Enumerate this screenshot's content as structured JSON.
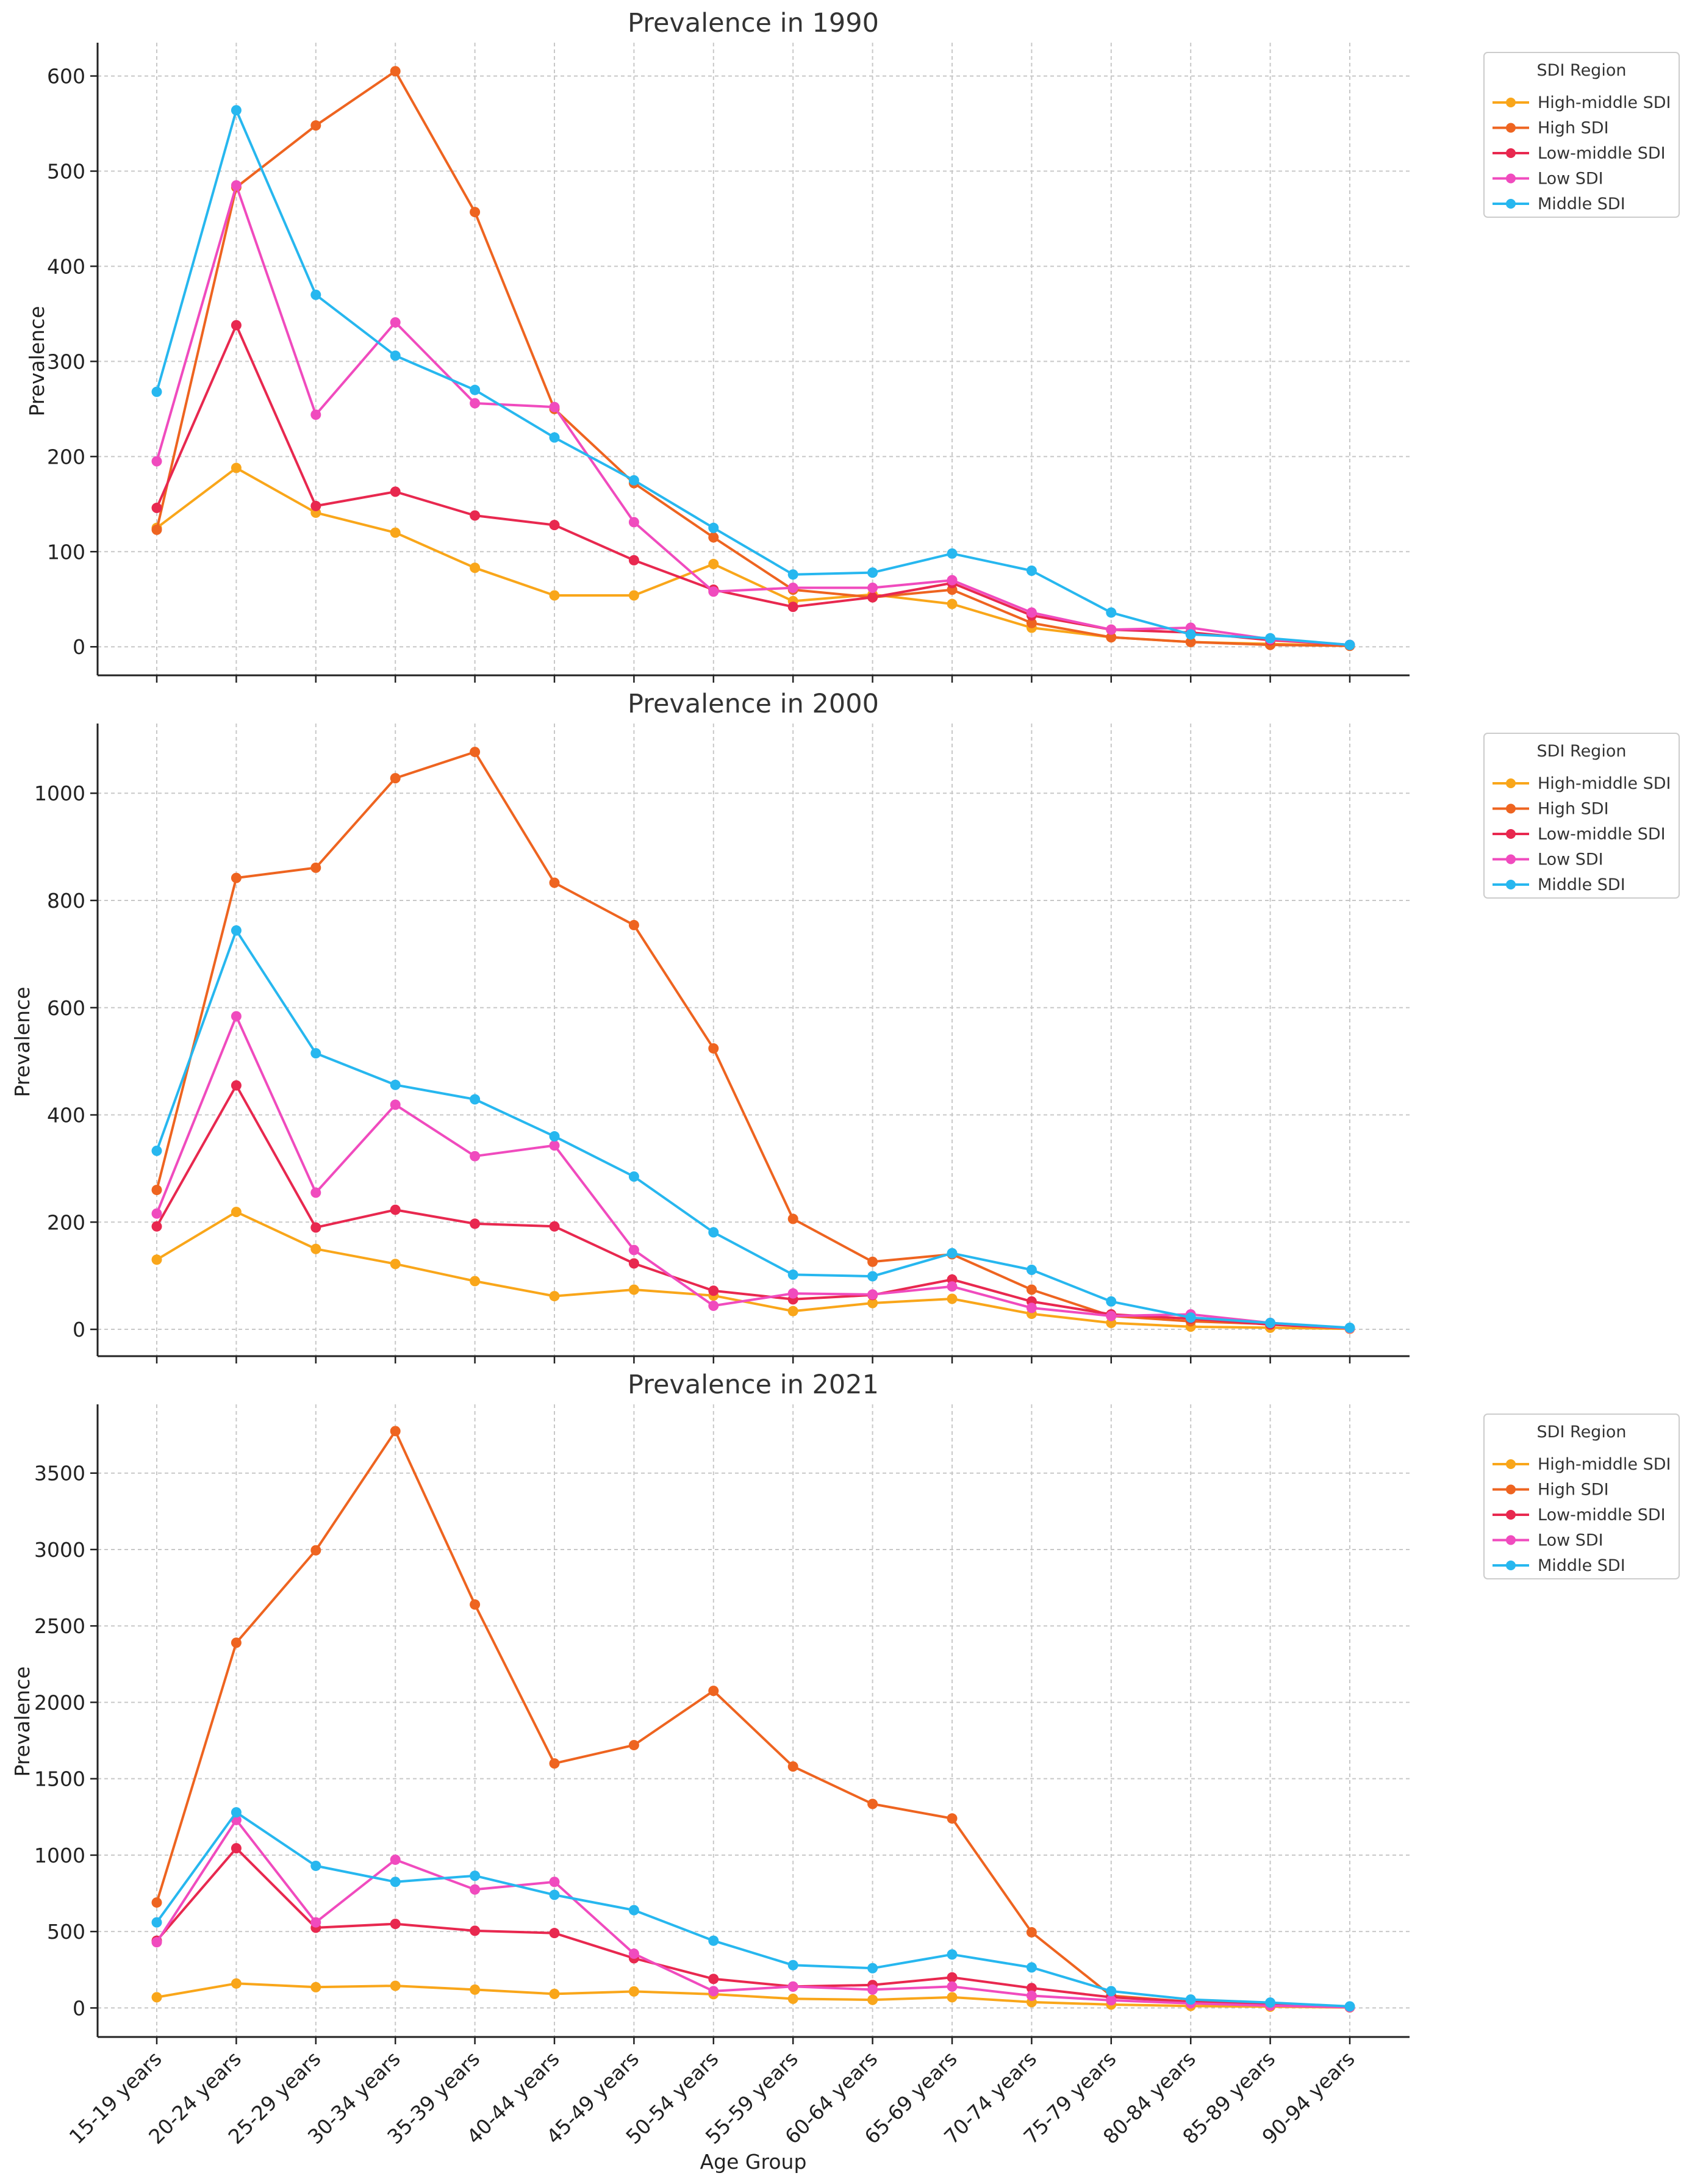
{
  "figure": {
    "xlabel": "Age Group",
    "ylabel": "Prevalence"
  },
  "legend_title": "SDI Region",
  "series_meta": [
    {
      "name": "High-middle SDI",
      "color": "#F9A61A"
    },
    {
      "name": "High SDI",
      "color": "#EE6420"
    },
    {
      "name": "Low-middle SDI",
      "color": "#E8284F"
    },
    {
      "name": "Low SDI",
      "color": "#F04BBE"
    },
    {
      "name": "Middle SDI",
      "color": "#27B7EF"
    }
  ],
  "chart_data": [
    {
      "type": "line",
      "title": "Prevalence in 1990",
      "xlabel": "",
      "ylabel": "Prevalence",
      "ylim": [
        -30,
        635
      ],
      "yticks": [
        0,
        100,
        200,
        300,
        400,
        500,
        600
      ],
      "grid": true,
      "legend": "top-right outside",
      "categories": [
        "15-19 years",
        "20-24 years",
        "25-29 years",
        "30-34 years",
        "35-39 years",
        "40-44 years",
        "45-49 years",
        "50-54 years",
        "55-59 years",
        "60-64 years",
        "65-69 years",
        "70-74 years",
        "75-79 years",
        "80-84 years",
        "85-89 years",
        "90-94 years"
      ],
      "series": [
        {
          "name": "High-middle SDI",
          "values": [
            125,
            188,
            141,
            120,
            83,
            54,
            54,
            87,
            48,
            55,
            45,
            20,
            10,
            5,
            3,
            1
          ]
        },
        {
          "name": "High SDI",
          "values": [
            123,
            483,
            548,
            605,
            457,
            250,
            172,
            115,
            60,
            52,
            60,
            25,
            10,
            5,
            2,
            1
          ]
        },
        {
          "name": "Low-middle SDI",
          "values": [
            146,
            338,
            148,
            163,
            138,
            128,
            91,
            60,
            42,
            52,
            67,
            33,
            18,
            15,
            7,
            2
          ]
        },
        {
          "name": "Low SDI",
          "values": [
            195,
            485,
            244,
            341,
            256,
            252,
            131,
            58,
            62,
            62,
            70,
            36,
            18,
            20,
            8,
            2
          ]
        },
        {
          "name": "Middle SDI",
          "values": [
            268,
            564,
            370,
            306,
            270,
            220,
            175,
            125,
            76,
            78,
            98,
            80,
            36,
            13,
            9,
            2
          ]
        }
      ]
    },
    {
      "type": "line",
      "title": "Prevalence in 2000",
      "xlabel": "",
      "ylabel": "Prevalence",
      "ylim": [
        -50,
        1130
      ],
      "yticks": [
        0,
        200,
        400,
        600,
        800,
        1000
      ],
      "grid": true,
      "legend": "top-right outside",
      "categories": [
        "15-19 years",
        "20-24 years",
        "25-29 years",
        "30-34 years",
        "35-39 years",
        "40-44 years",
        "45-49 years",
        "50-54 years",
        "55-59 years",
        "60-64 years",
        "65-69 years",
        "70-74 years",
        "75-79 years",
        "80-84 years",
        "85-89 years",
        "90-94 years"
      ],
      "series": [
        {
          "name": "High-middle SDI",
          "values": [
            130,
            219,
            150,
            122,
            90,
            62,
            74,
            63,
            34,
            49,
            57,
            29,
            12,
            5,
            3,
            1
          ]
        },
        {
          "name": "High SDI",
          "values": [
            260,
            842,
            861,
            1028,
            1077,
            833,
            754,
            524,
            206,
            126,
            140,
            74,
            25,
            15,
            10,
            2
          ]
        },
        {
          "name": "Low-middle SDI",
          "values": [
            192,
            455,
            190,
            223,
            197,
            192,
            123,
            72,
            56,
            64,
            93,
            52,
            28,
            20,
            9,
            2
          ]
        },
        {
          "name": "Low SDI",
          "values": [
            216,
            584,
            255,
            419,
            323,
            343,
            148,
            44,
            67,
            65,
            80,
            40,
            25,
            28,
            12,
            2
          ]
        },
        {
          "name": "Middle SDI",
          "values": [
            333,
            744,
            515,
            456,
            429,
            360,
            285,
            181,
            102,
            99,
            142,
            111,
            52,
            22,
            12,
            3
          ]
        }
      ]
    },
    {
      "type": "line",
      "title": "Prevalence in 2021",
      "xlabel": "Age Group",
      "ylabel": "Prevalence",
      "ylim": [
        -190,
        3950
      ],
      "yticks": [
        0,
        500,
        1000,
        1500,
        2000,
        2500,
        3000,
        3500
      ],
      "grid": true,
      "legend": "top-right outside",
      "categories": [
        "15-19 years",
        "20-24 years",
        "25-29 years",
        "30-34 years",
        "35-39 years",
        "40-44 years",
        "45-49 years",
        "50-54 years",
        "55-59 years",
        "60-64 years",
        "65-69 years",
        "70-74 years",
        "75-79 years",
        "80-84 years",
        "85-89 years",
        "90-94 years"
      ],
      "series": [
        {
          "name": "High-middle SDI",
          "values": [
            70,
            160,
            136,
            145,
            120,
            92,
            108,
            90,
            60,
            53,
            70,
            38,
            22,
            13,
            8,
            3
          ]
        },
        {
          "name": "High SDI",
          "values": [
            690,
            2390,
            2995,
            3775,
            2640,
            1600,
            1720,
            2075,
            1580,
            1335,
            1240,
            495,
            80,
            40,
            20,
            5
          ]
        },
        {
          "name": "Low-middle SDI",
          "values": [
            440,
            1045,
            525,
            550,
            505,
            490,
            325,
            190,
            140,
            150,
            200,
            130,
            70,
            40,
            25,
            5
          ]
        },
        {
          "name": "Low SDI",
          "values": [
            430,
            1230,
            560,
            970,
            775,
            825,
            355,
            110,
            140,
            120,
            140,
            80,
            50,
            30,
            15,
            5
          ]
        },
        {
          "name": "Middle SDI",
          "values": [
            560,
            1280,
            930,
            825,
            865,
            740,
            640,
            440,
            280,
            260,
            350,
            265,
            110,
            55,
            35,
            10
          ]
        }
      ]
    }
  ]
}
